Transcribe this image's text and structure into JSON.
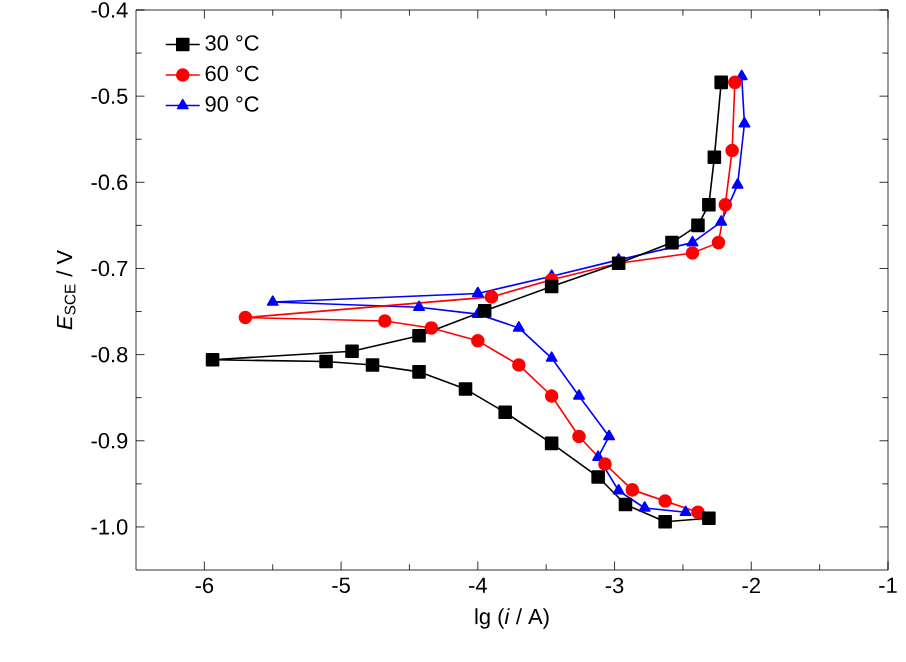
{
  "chart_data": {
    "type": "line",
    "xlabel": "lg (*i* / A)",
    "ylabel": "*E*$_{SCE}$ / V",
    "xlim": [
      -6.5,
      -1
    ],
    "ylim": [
      -1.05,
      -0.4
    ],
    "xticks": [
      -6,
      -5,
      -4,
      -3,
      -2,
      -1
    ],
    "yticks": [
      {
        "value": -1,
        "label": "-1.0"
      },
      -0.9,
      -0.8,
      -0.7,
      -0.6,
      -0.5,
      -0.4
    ],
    "legend": "top left",
    "grid": false,
    "line_style": "solid",
    "series": [
      {
        "name": "30 °C",
        "color": "#000000",
        "marker": "square",
        "x": [
          -2.31,
          -2.63,
          -2.92,
          -3.12,
          -3.46,
          -3.8,
          -4.09,
          -4.43,
          -4.77,
          -5.11,
          -5.94,
          -4.92,
          -4.43,
          -3.95,
          -3.46,
          -2.97,
          -2.58,
          -2.39,
          -2.31,
          -2.27,
          -2.22
        ],
        "values": [
          -0.99,
          -0.994,
          -0.974,
          -0.942,
          -0.903,
          -0.867,
          -0.84,
          -0.82,
          -0.812,
          -0.808,
          -0.806,
          -0.796,
          -0.778,
          -0.749,
          -0.721,
          -0.694,
          -0.67,
          -0.65,
          -0.626,
          -0.571,
          -0.484
        ]
      },
      {
        "name": "60 °C",
        "color": "#ff0000",
        "marker": "circle",
        "x": [
          -2.39,
          -2.63,
          -2.87,
          -3.07,
          -3.26,
          -3.46,
          -3.7,
          -4.0,
          -4.34,
          -4.68,
          -5.7,
          -3.9,
          -3.46,
          -2.97,
          -2.43,
          -2.24,
          -2.19,
          -2.14,
          -2.12
        ],
        "values": [
          -0.983,
          -0.97,
          -0.957,
          -0.927,
          -0.895,
          -0.848,
          -0.812,
          -0.784,
          -0.769,
          -0.761,
          -0.757,
          -0.733,
          -0.713,
          -0.694,
          -0.682,
          -0.67,
          -0.626,
          -0.563,
          -0.484
        ]
      },
      {
        "name": "90 °C",
        "color": "#0000ff",
        "marker": "triangle",
        "x": [
          -2.48,
          -2.78,
          -2.97,
          -3.12,
          -3.04,
          -3.26,
          -3.46,
          -3.7,
          -4.0,
          -4.43,
          -5.5,
          -4.0,
          -3.46,
          -2.97,
          -2.43,
          -2.22,
          -2.1,
          -2.05,
          -2.07
        ],
        "values": [
          -0.983,
          -0.978,
          -0.958,
          -0.919,
          -0.895,
          -0.848,
          -0.804,
          -0.769,
          -0.753,
          -0.745,
          -0.739,
          -0.729,
          -0.709,
          -0.69,
          -0.67,
          -0.646,
          -0.603,
          -0.532,
          -0.477
        ]
      }
    ]
  }
}
